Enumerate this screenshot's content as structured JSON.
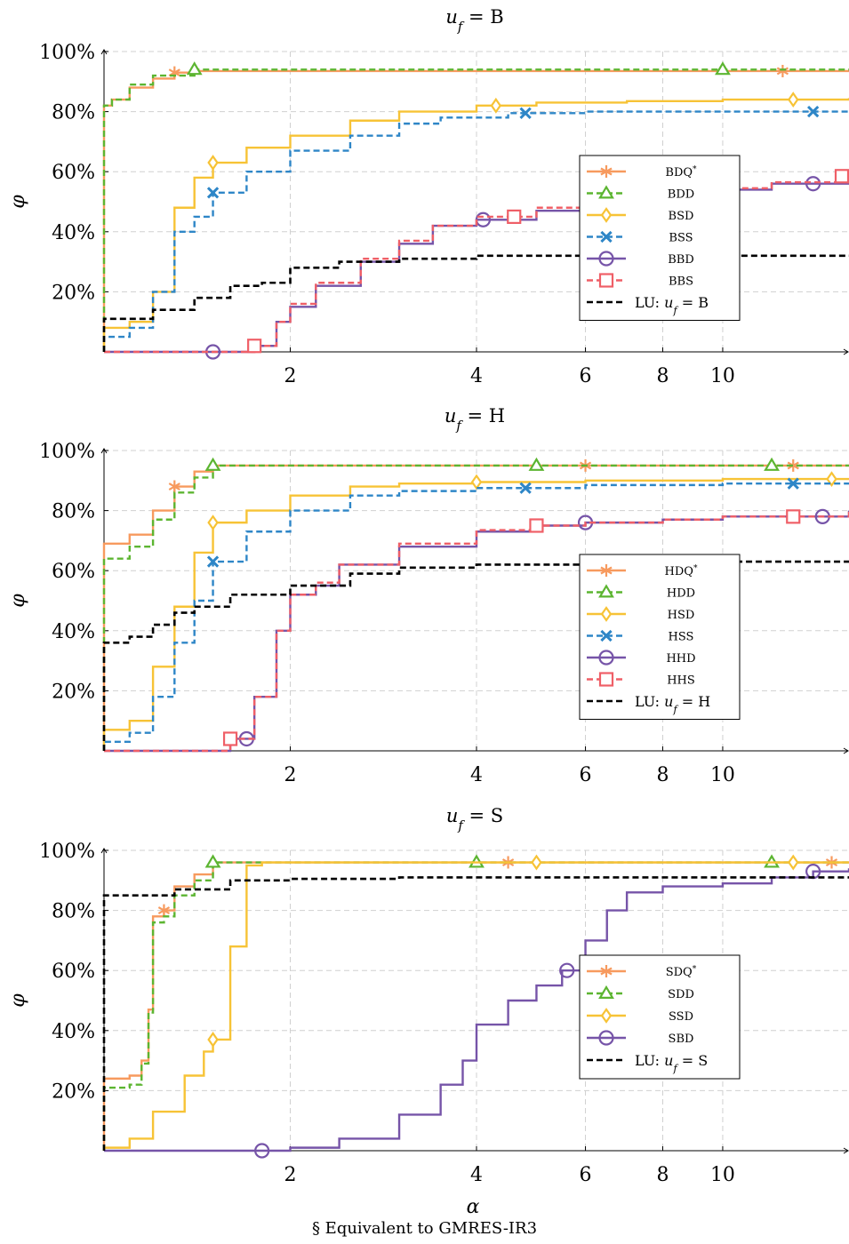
{
  "footnote": "§ Equivalent to GMRES-IR3",
  "colors": {
    "orange": "#f79a5e",
    "green": "#5cb531",
    "yellow": "#f7c336",
    "blue": "#2e86c7",
    "purple": "#7654a8",
    "red": "#ef5f67",
    "black": "#000000",
    "grid": "#d0d0d0"
  },
  "chart_data": [
    {
      "type": "line",
      "title": "u_f = B",
      "xlabel": "",
      "ylabel": "φ",
      "x_scale": "log",
      "xlim": [
        1,
        16
      ],
      "ylim": [
        0,
        1
      ],
      "xticks": [
        2,
        4,
        6,
        8,
        10
      ],
      "yticks": [
        0.2,
        0.4,
        0.6,
        0.8,
        1.0
      ],
      "ytick_labels": [
        "20%",
        "40%",
        "60%",
        "80%",
        "100%"
      ],
      "grid": true,
      "legend_position": "right",
      "series": [
        {
          "name": "BDQ*",
          "color": "orange",
          "dash": "solid",
          "marker": "asterisk",
          "x": [
            1.0,
            1.0,
            1.03,
            1.1,
            1.2,
            1.3,
            1.4,
            1.5,
            16.0
          ],
          "y": [
            0.0,
            0.82,
            0.84,
            0.88,
            0.91,
            0.93,
            0.935,
            0.935,
            0.935
          ],
          "markers_at": [
            1.3,
            12.5
          ]
        },
        {
          "name": "BDD",
          "color": "green",
          "dash": "dashed",
          "marker": "triangle",
          "x": [
            1.0,
            1.0,
            1.03,
            1.1,
            1.2,
            1.4,
            1.5,
            16.0
          ],
          "y": [
            0.0,
            0.82,
            0.84,
            0.89,
            0.92,
            0.94,
            0.94,
            0.94
          ],
          "markers_at": [
            1.4,
            10.0
          ]
        },
        {
          "name": "BSD",
          "color": "yellow",
          "dash": "solid",
          "marker": "diamond",
          "x": [
            1.0,
            1.0,
            1.1,
            1.2,
            1.3,
            1.4,
            1.5,
            1.7,
            2.0,
            2.5,
            3.0,
            4.0,
            5.0,
            7.0,
            10.0,
            16.0
          ],
          "y": [
            0.0,
            0.08,
            0.1,
            0.2,
            0.48,
            0.58,
            0.63,
            0.68,
            0.72,
            0.77,
            0.8,
            0.82,
            0.83,
            0.835,
            0.84,
            0.845
          ],
          "markers_at": [
            1.5,
            4.3,
            13.0
          ]
        },
        {
          "name": "BSS",
          "color": "blue",
          "dash": "dashed",
          "marker": "cross",
          "x": [
            1.0,
            1.0,
            1.1,
            1.2,
            1.3,
            1.4,
            1.5,
            1.7,
            2.0,
            2.5,
            3.0,
            3.5,
            4.5,
            6.0,
            10.0,
            16.0
          ],
          "y": [
            0.0,
            0.05,
            0.08,
            0.2,
            0.4,
            0.45,
            0.53,
            0.6,
            0.67,
            0.72,
            0.76,
            0.78,
            0.795,
            0.8,
            0.8,
            0.8
          ],
          "markers_at": [
            1.5,
            4.8,
            14.0
          ]
        },
        {
          "name": "BBD",
          "color": "purple",
          "dash": "solid",
          "marker": "circle",
          "x": [
            1.0,
            1.5,
            1.75,
            1.9,
            2.0,
            2.2,
            2.6,
            3.0,
            3.4,
            4.0,
            5.0,
            6.0,
            8.0,
            10.0,
            12.0,
            16.0
          ],
          "y": [
            0.0,
            0.0,
            0.02,
            0.1,
            0.15,
            0.22,
            0.3,
            0.36,
            0.42,
            0.44,
            0.47,
            0.5,
            0.52,
            0.54,
            0.56,
            0.58
          ],
          "markers_at": [
            1.5,
            4.1,
            14.0
          ]
        },
        {
          "name": "BBS",
          "color": "red",
          "dash": "dashed",
          "marker": "square",
          "x": [
            1.0,
            1.5,
            1.75,
            1.9,
            2.0,
            2.2,
            2.6,
            3.0,
            3.4,
            4.0,
            5.0,
            6.0,
            8.0,
            10.0,
            12.0,
            16.0
          ],
          "y": [
            0.0,
            0.0,
            0.02,
            0.1,
            0.16,
            0.23,
            0.31,
            0.37,
            0.42,
            0.45,
            0.48,
            0.5,
            0.52,
            0.545,
            0.565,
            0.585
          ],
          "markers_at": [
            1.75,
            4.6,
            16.0
          ]
        },
        {
          "name": "LU: u_f = B",
          "color": "black",
          "dash": "dashed",
          "marker": "none",
          "x": [
            1.0,
            1.0,
            1.2,
            1.4,
            1.6,
            1.8,
            2.0,
            2.4,
            3.0,
            3.6,
            4.0,
            16.0
          ],
          "y": [
            0.0,
            0.11,
            0.14,
            0.18,
            0.22,
            0.23,
            0.28,
            0.3,
            0.31,
            0.31,
            0.32,
            0.32
          ],
          "markers_at": []
        }
      ]
    },
    {
      "type": "line",
      "title": "u_f = H",
      "xlabel": "",
      "ylabel": "φ",
      "x_scale": "log",
      "xlim": [
        1,
        16
      ],
      "ylim": [
        0,
        1
      ],
      "xticks": [
        2,
        4,
        6,
        8,
        10
      ],
      "yticks": [
        0.2,
        0.4,
        0.6,
        0.8,
        1.0
      ],
      "ytick_labels": [
        "20%",
        "40%",
        "60%",
        "80%",
        "100%"
      ],
      "grid": true,
      "legend_position": "right",
      "series": [
        {
          "name": "HDQ*",
          "color": "orange",
          "dash": "solid",
          "marker": "asterisk",
          "x": [
            1.0,
            1.0,
            1.1,
            1.2,
            1.3,
            1.4,
            1.5,
            16.0
          ],
          "y": [
            0.0,
            0.69,
            0.72,
            0.8,
            0.88,
            0.93,
            0.95,
            0.95
          ],
          "markers_at": [
            1.3,
            6.0,
            13.0
          ]
        },
        {
          "name": "HDD",
          "color": "green",
          "dash": "dashed",
          "marker": "triangle",
          "x": [
            1.0,
            1.0,
            1.1,
            1.2,
            1.3,
            1.4,
            1.5,
            16.0
          ],
          "y": [
            0.0,
            0.64,
            0.68,
            0.77,
            0.86,
            0.91,
            0.95,
            0.95
          ],
          "markers_at": [
            1.5,
            5.0,
            12.0
          ]
        },
        {
          "name": "HSD",
          "color": "yellow",
          "dash": "solid",
          "marker": "diamond",
          "x": [
            1.0,
            1.0,
            1.1,
            1.2,
            1.3,
            1.4,
            1.5,
            1.7,
            2.0,
            2.5,
            3.0,
            4.0,
            6.0,
            10.0,
            16.0
          ],
          "y": [
            0.0,
            0.07,
            0.1,
            0.28,
            0.48,
            0.66,
            0.76,
            0.8,
            0.85,
            0.88,
            0.89,
            0.895,
            0.9,
            0.905,
            0.905
          ],
          "markers_at": [
            1.5,
            4.0,
            15.0
          ]
        },
        {
          "name": "HSS",
          "color": "blue",
          "dash": "dashed",
          "marker": "cross",
          "x": [
            1.0,
            1.0,
            1.1,
            1.2,
            1.3,
            1.4,
            1.5,
            1.7,
            2.0,
            2.5,
            3.0,
            4.0,
            6.0,
            10.0,
            16.0
          ],
          "y": [
            0.0,
            0.03,
            0.06,
            0.18,
            0.36,
            0.5,
            0.63,
            0.73,
            0.8,
            0.85,
            0.865,
            0.875,
            0.885,
            0.89,
            0.89
          ],
          "markers_at": [
            1.5,
            4.8,
            13.0
          ]
        },
        {
          "name": "HHD",
          "color": "purple",
          "dash": "solid",
          "marker": "circle",
          "x": [
            1.0,
            1.5,
            1.6,
            1.75,
            1.9,
            2.0,
            2.2,
            2.4,
            3.0,
            4.0,
            5.0,
            6.0,
            8.0,
            10.0,
            16.0
          ],
          "y": [
            0.0,
            0.0,
            0.04,
            0.18,
            0.4,
            0.52,
            0.55,
            0.62,
            0.68,
            0.73,
            0.75,
            0.76,
            0.77,
            0.78,
            0.8
          ],
          "markers_at": [
            1.7,
            6.0,
            14.5
          ]
        },
        {
          "name": "HHS",
          "color": "red",
          "dash": "dashed",
          "marker": "square",
          "x": [
            1.0,
            1.5,
            1.6,
            1.75,
            1.9,
            2.0,
            2.2,
            2.4,
            3.0,
            4.0,
            5.0,
            6.0,
            8.0,
            10.0,
            16.0
          ],
          "y": [
            0.0,
            0.0,
            0.04,
            0.18,
            0.4,
            0.52,
            0.56,
            0.62,
            0.69,
            0.735,
            0.75,
            0.76,
            0.77,
            0.78,
            0.8
          ],
          "markers_at": [
            1.6,
            5.0,
            13.0
          ]
        },
        {
          "name": "LU: u_f = H",
          "color": "black",
          "dash": "dashed",
          "marker": "none",
          "x": [
            1.0,
            1.0,
            1.1,
            1.2,
            1.3,
            1.4,
            1.6,
            2.0,
            2.5,
            3.0,
            4.0,
            6.0,
            16.0
          ],
          "y": [
            0.0,
            0.36,
            0.38,
            0.42,
            0.46,
            0.48,
            0.52,
            0.55,
            0.59,
            0.61,
            0.62,
            0.63,
            0.63
          ],
          "markers_at": []
        }
      ]
    },
    {
      "type": "line",
      "title": "u_f = S",
      "xlabel": "α",
      "ylabel": "φ",
      "x_scale": "log",
      "xlim": [
        1,
        16
      ],
      "ylim": [
        0,
        1
      ],
      "xticks": [
        2,
        4,
        6,
        8,
        10
      ],
      "yticks": [
        0.2,
        0.4,
        0.6,
        0.8,
        1.0
      ],
      "ytick_labels": [
        "20%",
        "40%",
        "60%",
        "80%",
        "100%"
      ],
      "grid": true,
      "legend_position": "right",
      "series": [
        {
          "name": "SDQ*",
          "color": "orange",
          "dash": "solid",
          "marker": "asterisk",
          "x": [
            1.0,
            1.0,
            1.1,
            1.15,
            1.18,
            1.2,
            1.25,
            1.3,
            1.4,
            1.5,
            16.0
          ],
          "y": [
            0.0,
            0.24,
            0.25,
            0.3,
            0.47,
            0.78,
            0.8,
            0.88,
            0.92,
            0.96,
            0.96
          ],
          "markers_at": [
            1.25,
            4.5,
            15.0
          ]
        },
        {
          "name": "SDD",
          "color": "green",
          "dash": "dashed",
          "marker": "triangle",
          "x": [
            1.0,
            1.0,
            1.1,
            1.15,
            1.18,
            1.2,
            1.25,
            1.3,
            1.4,
            1.5,
            16.0
          ],
          "y": [
            0.0,
            0.21,
            0.22,
            0.29,
            0.46,
            0.76,
            0.78,
            0.85,
            0.9,
            0.96,
            0.96
          ],
          "markers_at": [
            1.5,
            4.0,
            12.0
          ]
        },
        {
          "name": "SSD",
          "color": "yellow",
          "dash": "solid",
          "marker": "diamond",
          "x": [
            1.0,
            1.0,
            1.1,
            1.2,
            1.35,
            1.45,
            1.5,
            1.6,
            1.7,
            1.8,
            16.0
          ],
          "y": [
            0.0,
            0.01,
            0.04,
            0.13,
            0.25,
            0.33,
            0.37,
            0.68,
            0.95,
            0.96,
            0.96
          ],
          "markers_at": [
            1.5,
            5.0,
            13.0
          ]
        },
        {
          "name": "SBD",
          "color": "purple",
          "dash": "solid",
          "marker": "circle",
          "x": [
            1.0,
            1.8,
            2.0,
            2.4,
            3.0,
            3.5,
            3.8,
            4.0,
            4.5,
            5.0,
            5.5,
            6.0,
            6.5,
            7.0,
            8.0,
            10.0,
            12.0,
            14.0,
            16.0
          ],
          "y": [
            0.0,
            0.0,
            0.01,
            0.04,
            0.12,
            0.22,
            0.3,
            0.42,
            0.5,
            0.55,
            0.6,
            0.7,
            0.8,
            0.86,
            0.88,
            0.89,
            0.91,
            0.93,
            0.94
          ],
          "markers_at": [
            1.8,
            5.6,
            14.0
          ]
        },
        {
          "name": "LU: u_f = S",
          "color": "black",
          "dash": "dashed",
          "marker": "none",
          "x": [
            1.0,
            1.0,
            1.3,
            1.6,
            2.0,
            3.0,
            16.0
          ],
          "y": [
            0.0,
            0.85,
            0.87,
            0.9,
            0.905,
            0.91,
            0.91
          ],
          "markers_at": []
        }
      ]
    }
  ]
}
